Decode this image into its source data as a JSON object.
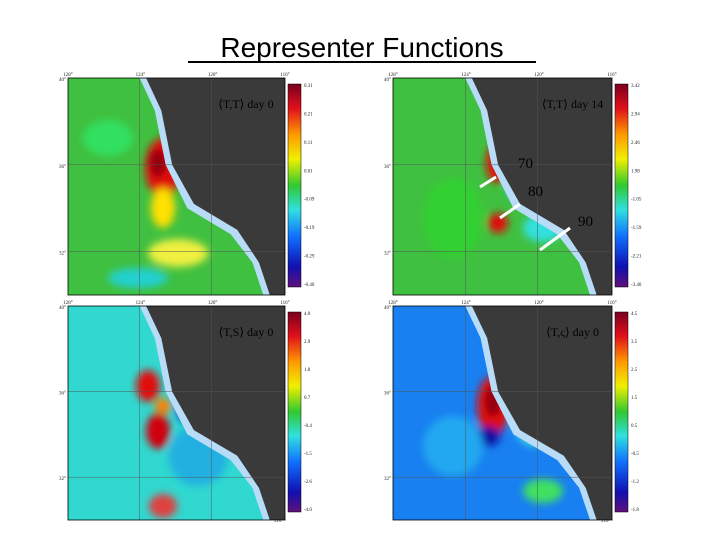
{
  "title": "Representer Functions",
  "panels": [
    {
      "label": "⟨T,T⟩ day 0",
      "x_labels": [
        "128°",
        "124°",
        "120°",
        "116°"
      ],
      "y_labels": [
        "40°",
        "36°",
        "32°"
      ],
      "colorbar_labels": [
        "0.31",
        "0.21",
        "0.11",
        "0.01",
        "-0.09",
        "-0.19",
        "-0.29",
        "-0.40"
      ]
    },
    {
      "label": "⟨T,T⟩ day 14",
      "x_labels": [
        "128°",
        "124°",
        "120°",
        "116°"
      ],
      "y_labels": [
        "40°",
        "36°",
        "32°"
      ],
      "colorbar_labels": [
        "3.42",
        "2.94",
        "2.46",
        "1.98",
        "-1.05",
        "-1.59",
        "-2.21",
        "-3.40"
      ]
    },
    {
      "label": "⟨T,S⟩ day 0",
      "x_labels": [
        "128°",
        "124°",
        "120°",
        "116°"
      ],
      "y_labels": [
        "40°",
        "36°",
        "32°"
      ],
      "colorbar_labels": [
        "4.0",
        "2.9",
        "1.8",
        "0.7",
        "-0.4",
        "-1.5",
        "-2.6",
        "-4.0"
      ],
      "scale": "x10⁻⁴"
    },
    {
      "label": "⟨T,ς⟩ day 0",
      "x_labels": [
        "128°",
        "124°",
        "120°",
        "116°"
      ],
      "y_labels": [
        "40°",
        "36°",
        "32°"
      ],
      "colorbar_labels": [
        "4.5",
        "3.5",
        "2.5",
        "1.5",
        "0.5",
        "-0.5",
        "-1.2",
        "-1.8"
      ],
      "scale": "x10⁻⁴"
    }
  ],
  "annotations": [
    "70",
    "80",
    "90"
  ]
}
